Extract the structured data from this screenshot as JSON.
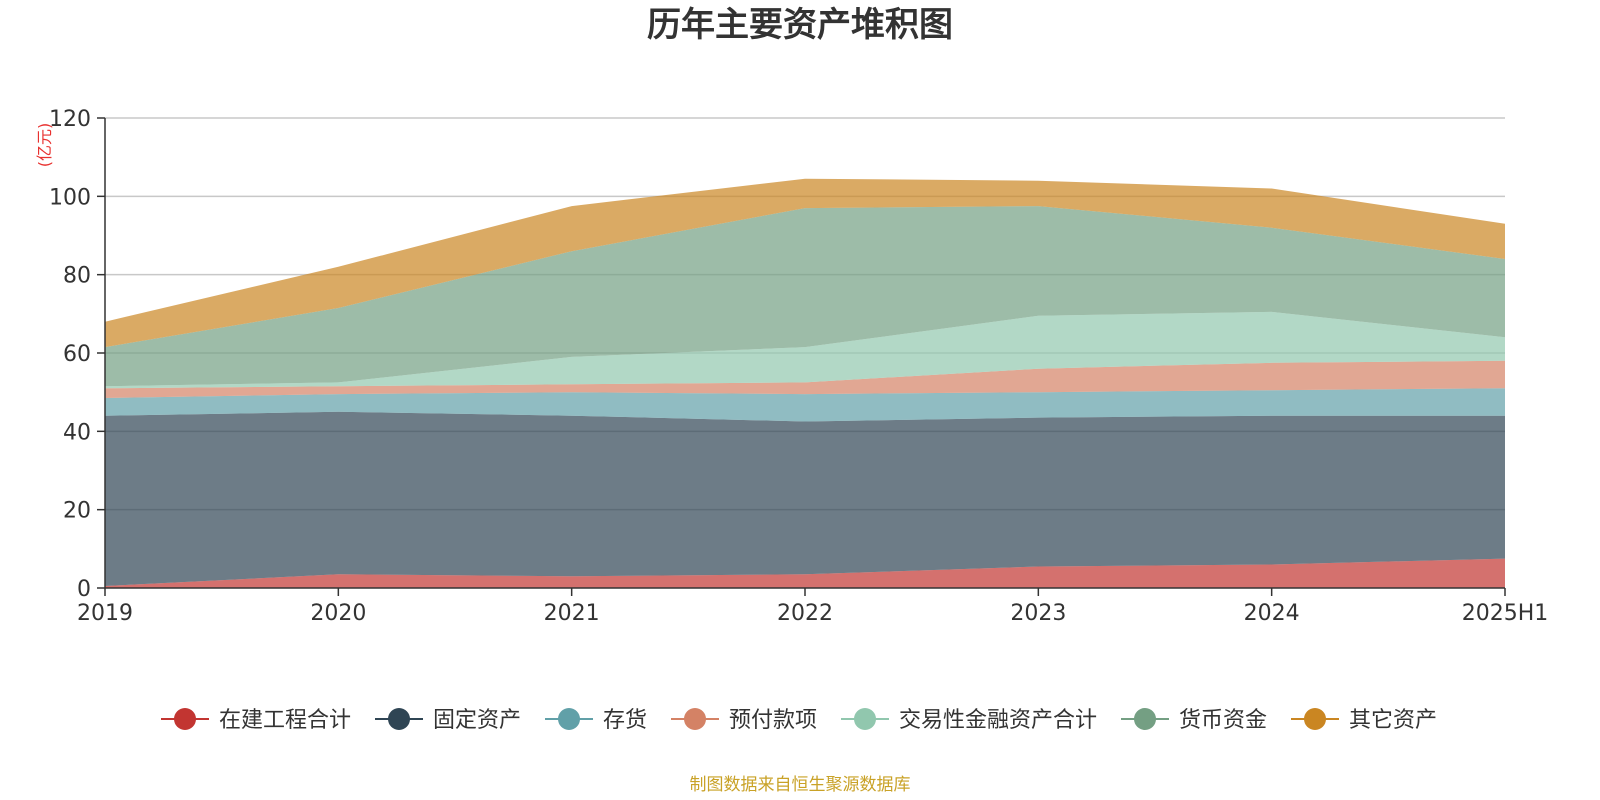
{
  "chart_data": {
    "type": "area",
    "stacked": true,
    "title": "历年主要资产堆积图",
    "unit_label": "(亿元)",
    "source_note": "制图数据来自恒生聚源数据库",
    "x": [
      "2019",
      "2020",
      "2021",
      "2022",
      "2023",
      "2024",
      "2025H1"
    ],
    "ylim": [
      0,
      120
    ],
    "yticks": [
      0,
      20,
      40,
      60,
      80,
      100,
      120
    ],
    "grid": true,
    "legend_position": "bottom",
    "series": [
      {
        "name": "在建工程合计",
        "color": "#c23531",
        "values": [
          0.5,
          3.5,
          3.0,
          3.5,
          5.5,
          6.0,
          7.5
        ]
      },
      {
        "name": "固定资产",
        "color": "#2f4554",
        "values": [
          43.5,
          41.5,
          41.0,
          39.0,
          38.0,
          38.0,
          36.5
        ]
      },
      {
        "name": "存货",
        "color": "#61a0a8",
        "values": [
          4.5,
          4.5,
          6.0,
          7.0,
          6.5,
          6.5,
          7.0
        ]
      },
      {
        "name": "预付款项",
        "color": "#d48265",
        "values": [
          2.5,
          2.0,
          2.0,
          3.0,
          6.0,
          7.0,
          7.0
        ]
      },
      {
        "name": "交易性金融资产合计",
        "color": "#91c7ae",
        "values": [
          0.5,
          1.0,
          7.0,
          9.0,
          13.5,
          13.0,
          6.0
        ]
      },
      {
        "name": "货币资金",
        "color": "#749f83",
        "values": [
          10.0,
          19.0,
          27.0,
          35.5,
          28.0,
          21.5,
          20.0
        ]
      },
      {
        "name": "其它资产",
        "color": "#ca8622",
        "values": [
          6.5,
          10.5,
          11.5,
          7.5,
          6.5,
          10.0,
          9.0
        ]
      }
    ]
  }
}
